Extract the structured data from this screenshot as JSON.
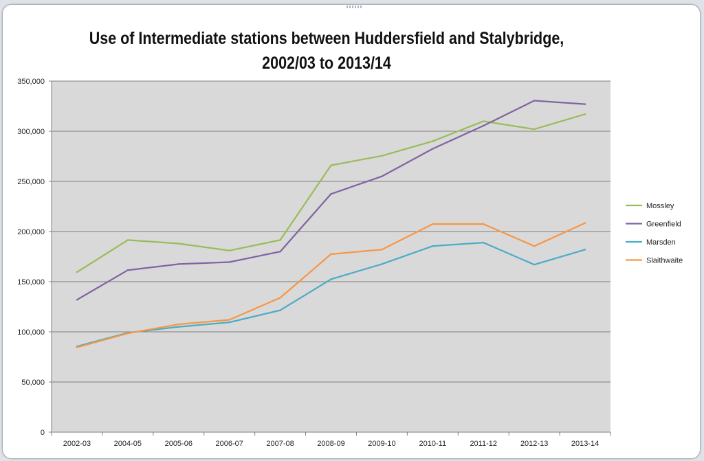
{
  "chart_data": {
    "type": "line",
    "title": "Use of Intermediate stations between Huddersfield and Stalybridge, 2002/03 to 2013/14",
    "xlabel": "",
    "ylabel": "",
    "ylim": [
      0,
      350000
    ],
    "ytick_values": [
      0,
      50000,
      100000,
      150000,
      200000,
      250000,
      300000,
      350000
    ],
    "ytick_labels": [
      "0",
      "50,000",
      "100,000",
      "150,000",
      "200,000",
      "250,000",
      "300,000",
      "350,000"
    ],
    "grid": true,
    "legend_position": "right",
    "categories": [
      "2002-03",
      "2004-05",
      "2005-06",
      "2006-07",
      "2007-08",
      "2008-09",
      "2009-10",
      "2010-11",
      "2011-12",
      "2012-13",
      "2013-14"
    ],
    "series": [
      {
        "name": "Mossley",
        "color": "#9bbb59",
        "values": [
          159500,
          191500,
          188000,
          181000,
          191500,
          266000,
          275500,
          290000,
          310000,
          302000,
          317000
        ]
      },
      {
        "name": "Greenfield",
        "color": "#8064a2",
        "values": [
          132000,
          161500,
          167500,
          169500,
          180000,
          237500,
          255000,
          282500,
          305500,
          330500,
          327000
        ]
      },
      {
        "name": "Marsden",
        "color": "#4bacc6",
        "values": [
          85500,
          99000,
          105000,
          109500,
          121500,
          152500,
          167500,
          185500,
          189000,
          167000,
          182000
        ]
      },
      {
        "name": "Slaithwaite",
        "color": "#f79646",
        "values": [
          84500,
          98500,
          107500,
          112000,
          134000,
          177500,
          182000,
          207500,
          207500,
          185500,
          208500
        ]
      }
    ]
  }
}
